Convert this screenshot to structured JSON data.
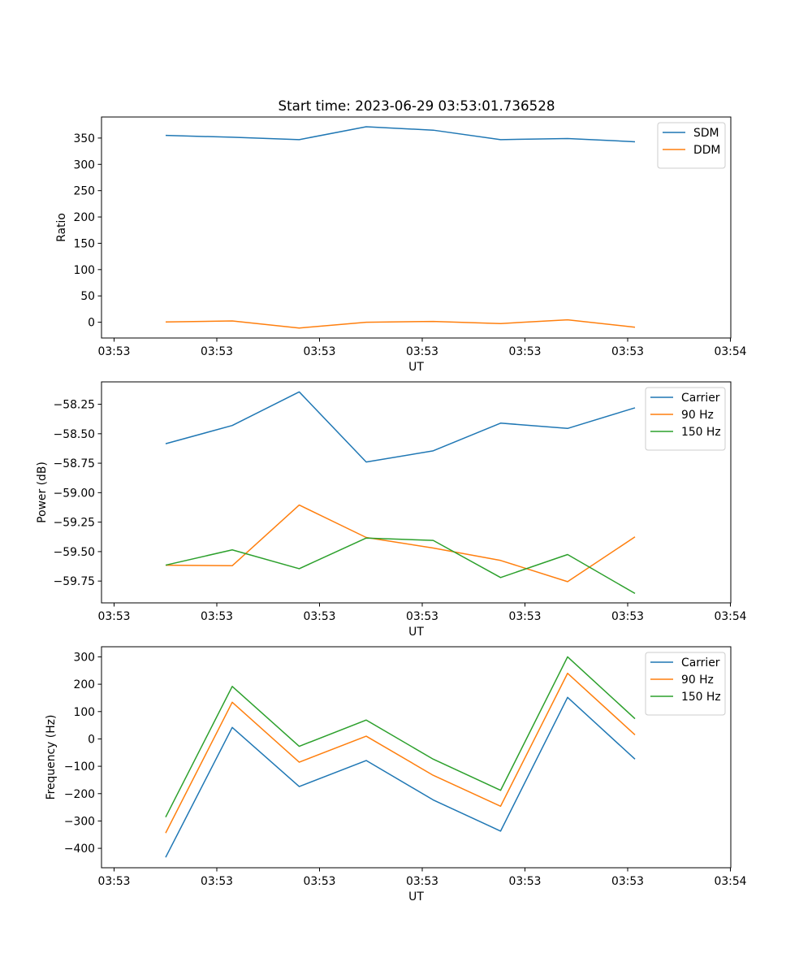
{
  "title": "Start time: 2023-06-29 03:53:01.736528",
  "chart_data": [
    {
      "type": "line",
      "xlabel": "UT",
      "ylabel": "Ratio",
      "x_tick_labels": [
        "03:53",
        "03:53",
        "03:53",
        "03:53",
        "03:53",
        "03:53",
        "03:54"
      ],
      "ylim": [
        -30,
        390
      ],
      "y_ticks": [
        0,
        50,
        100,
        150,
        200,
        250,
        300,
        350
      ],
      "legend_position": "upper right",
      "series": [
        {
          "name": "SDM",
          "color": "#1f77b4",
          "values": [
            355,
            351.5,
            347,
            371.5,
            365,
            347,
            349,
            343
          ]
        },
        {
          "name": "DDM",
          "color": "#ff7f0e",
          "values": [
            0.5,
            2.5,
            -11,
            0,
            1.5,
            -2.5,
            4.5,
            -9.5
          ]
        }
      ]
    },
    {
      "type": "line",
      "xlabel": "UT",
      "ylabel": "Power (dB)",
      "x_tick_labels": [
        "03:53",
        "03:53",
        "03:53",
        "03:53",
        "03:53",
        "03:53",
        "03:54"
      ],
      "ylim": [
        -59.935,
        -58.06
      ],
      "y_ticks": [
        -59.75,
        -59.5,
        -59.25,
        -59.0,
        -58.75,
        -58.5,
        -58.25
      ],
      "legend_position": "upper right",
      "series": [
        {
          "name": "Carrier",
          "color": "#1f77b4",
          "values": [
            -58.585,
            -58.43,
            -58.145,
            -58.74,
            -58.645,
            -58.41,
            -58.455,
            -58.28
          ]
        },
        {
          "name": "90 Hz",
          "color": "#ff7f0e",
          "values": [
            -59.615,
            -59.62,
            -59.105,
            -59.38,
            -59.47,
            -59.575,
            -59.755,
            -59.375
          ]
        },
        {
          "name": "150 Hz",
          "color": "#2ca02c",
          "values": [
            -59.615,
            -59.485,
            -59.645,
            -59.385,
            -59.405,
            -59.72,
            -59.525,
            -59.855
          ]
        }
      ]
    },
    {
      "type": "line",
      "xlabel": "UT",
      "ylabel": "Frequency (Hz)",
      "x_tick_labels": [
        "03:53",
        "03:53",
        "03:53",
        "03:53",
        "03:53",
        "03:53",
        "03:54"
      ],
      "ylim": [
        -471,
        337
      ],
      "y_ticks": [
        -400,
        -300,
        -200,
        -100,
        0,
        100,
        200,
        300
      ],
      "legend_position": "upper right",
      "series": [
        {
          "name": "Carrier",
          "color": "#1f77b4",
          "values": [
            -433,
            42,
            -174,
            -79,
            -223,
            -337,
            152,
            -74
          ]
        },
        {
          "name": "90 Hz",
          "color": "#ff7f0e",
          "values": [
            -344,
            134,
            -85,
            10,
            -133,
            -246,
            240,
            15
          ]
        },
        {
          "name": "150 Hz",
          "color": "#2ca02c",
          "values": [
            -286,
            192,
            -27,
            69,
            -74,
            -188,
            300,
            74
          ]
        }
      ]
    }
  ]
}
